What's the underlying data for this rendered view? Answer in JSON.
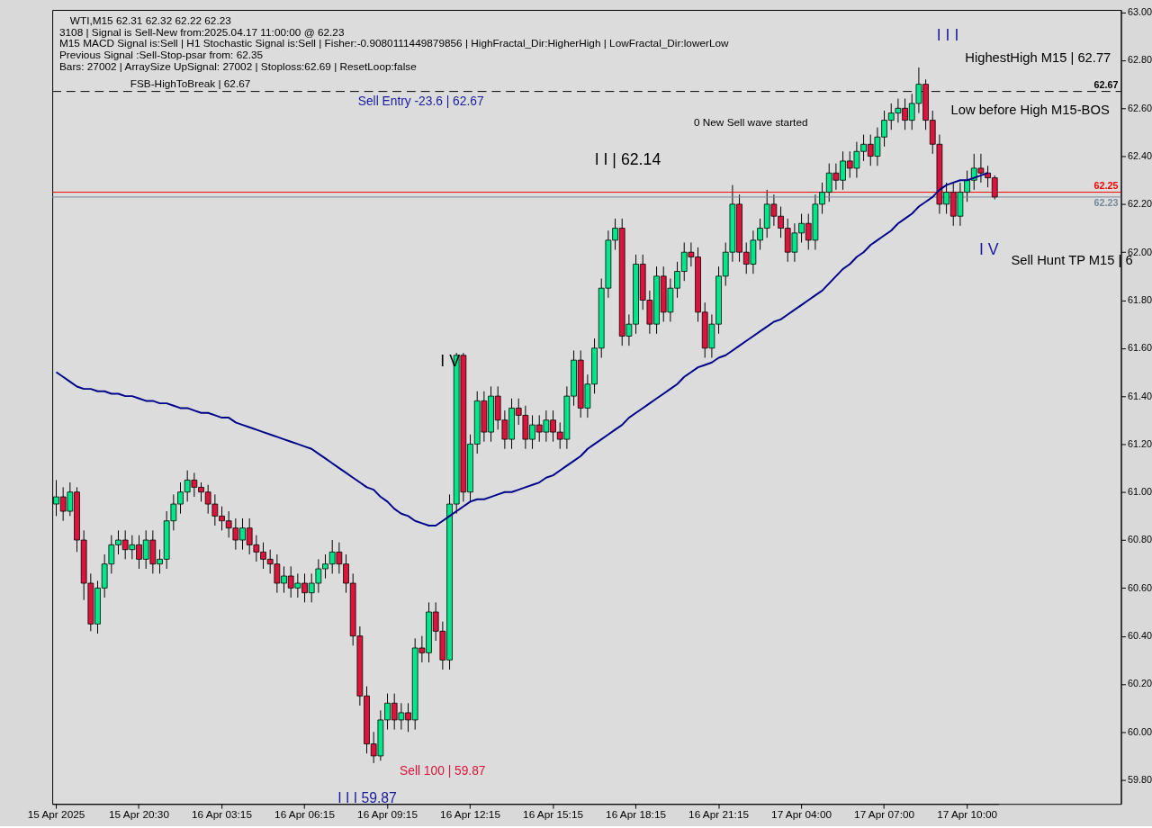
{
  "chart_data": {
    "type": "candlestick",
    "categories": [
      "15 Apr 2025",
      null,
      null,
      null,
      null,
      null,
      null,
      null,
      null,
      null,
      null,
      null,
      "15 Apr 20:30",
      null,
      null,
      null,
      null,
      null,
      null,
      null,
      null,
      null,
      null,
      null,
      "16 Apr 03:15",
      null,
      null,
      null,
      null,
      null,
      null,
      null,
      null,
      null,
      null,
      null,
      "16 Apr 06:15",
      null,
      null,
      null,
      null,
      null,
      null,
      null,
      null,
      null,
      null,
      null,
      "16 Apr 09:15",
      null,
      null,
      null,
      null,
      null,
      null,
      null,
      null,
      null,
      null,
      null,
      "16 Apr 12:15",
      null,
      null,
      null,
      null,
      null,
      null,
      null,
      null,
      null,
      null,
      null,
      "16 Apr 15:15",
      null,
      null,
      null,
      null,
      null,
      null,
      null,
      null,
      null,
      null,
      null,
      "16 Apr 18:15",
      null,
      null,
      null,
      null,
      null,
      null,
      null,
      null,
      null,
      null,
      null,
      "16 Apr 21:15",
      null,
      null,
      null,
      null,
      null,
      null,
      null,
      null,
      null,
      null,
      null,
      "17 Apr 04:00",
      null,
      null,
      null,
      null,
      null,
      null,
      null,
      null,
      null,
      null,
      null,
      "17 Apr 07:00",
      null,
      null,
      null,
      null,
      null,
      null,
      null,
      null,
      null,
      null,
      null,
      "17 Apr 10:00",
      null,
      null,
      null,
      null
    ],
    "ohlc": [
      [
        60.95,
        61.05,
        60.9,
        60.98
      ],
      [
        60.98,
        61.02,
        60.88,
        60.92
      ],
      [
        60.92,
        61.04,
        60.9,
        61.0
      ],
      [
        61.0,
        61.02,
        60.75,
        60.8
      ],
      [
        60.8,
        60.84,
        60.55,
        60.62
      ],
      [
        60.62,
        60.66,
        60.42,
        60.45
      ],
      [
        60.45,
        60.63,
        60.41,
        60.6
      ],
      [
        60.6,
        60.74,
        60.56,
        60.7
      ],
      [
        60.7,
        60.82,
        60.66,
        60.78
      ],
      [
        60.78,
        60.84,
        60.74,
        60.8
      ],
      [
        60.8,
        60.84,
        60.72,
        60.76
      ],
      [
        60.76,
        60.82,
        60.72,
        60.78
      ],
      [
        60.78,
        60.82,
        60.68,
        60.72
      ],
      [
        60.72,
        60.84,
        60.68,
        60.8
      ],
      [
        60.8,
        60.84,
        60.66,
        60.7
      ],
      [
        60.7,
        60.76,
        60.66,
        60.72
      ],
      [
        60.72,
        60.92,
        60.68,
        60.88
      ],
      [
        60.88,
        60.99,
        60.84,
        60.95
      ],
      [
        60.95,
        61.04,
        60.91,
        61.0
      ],
      [
        61.0,
        61.09,
        60.96,
        61.05
      ],
      [
        61.05,
        61.08,
        60.98,
        61.02
      ],
      [
        61.02,
        61.04,
        60.96,
        61.0
      ],
      [
        61.0,
        61.03,
        60.91,
        60.95
      ],
      [
        60.95,
        60.99,
        60.86,
        60.9
      ],
      [
        60.9,
        60.94,
        60.84,
        60.88
      ],
      [
        60.88,
        60.92,
        60.81,
        60.85
      ],
      [
        60.85,
        60.89,
        60.76,
        60.8
      ],
      [
        60.8,
        60.89,
        60.76,
        60.85
      ],
      [
        60.85,
        60.89,
        60.74,
        60.78
      ],
      [
        60.78,
        60.82,
        60.71,
        60.75
      ],
      [
        60.75,
        60.79,
        60.68,
        60.72
      ],
      [
        60.72,
        60.76,
        60.66,
        60.7
      ],
      [
        60.7,
        60.74,
        60.58,
        60.62
      ],
      [
        60.62,
        60.69,
        60.58,
        60.65
      ],
      [
        60.65,
        60.69,
        60.56,
        60.6
      ],
      [
        60.6,
        60.66,
        60.56,
        60.62
      ],
      [
        60.62,
        60.66,
        60.54,
        60.58
      ],
      [
        60.58,
        60.66,
        60.54,
        60.62
      ],
      [
        60.62,
        60.72,
        60.58,
        60.68
      ],
      [
        60.68,
        60.74,
        60.64,
        60.7
      ],
      [
        60.7,
        60.8,
        60.66,
        60.75
      ],
      [
        60.75,
        60.79,
        60.66,
        60.7
      ],
      [
        60.7,
        60.74,
        60.58,
        60.62
      ],
      [
        60.62,
        60.66,
        60.36,
        60.4
      ],
      [
        60.4,
        60.44,
        60.11,
        60.15
      ],
      [
        60.15,
        60.19,
        59.91,
        59.95
      ],
      [
        59.95,
        60.0,
        59.87,
        59.9
      ],
      [
        59.9,
        60.09,
        59.88,
        60.05
      ],
      [
        60.05,
        60.16,
        60.01,
        60.12
      ],
      [
        60.12,
        60.16,
        60.01,
        60.05
      ],
      [
        60.05,
        60.12,
        60.01,
        60.08
      ],
      [
        60.08,
        60.12,
        60.0,
        60.05
      ],
      [
        60.05,
        60.39,
        60.01,
        60.35
      ],
      [
        60.35,
        60.4,
        60.29,
        60.33
      ],
      [
        60.33,
        60.54,
        60.29,
        60.5
      ],
      [
        60.5,
        60.54,
        60.38,
        60.42
      ],
      [
        60.42,
        60.46,
        60.26,
        60.3
      ],
      [
        60.3,
        60.99,
        60.26,
        60.95
      ],
      [
        60.95,
        61.58,
        60.91,
        61.57
      ],
      [
        61.57,
        61.58,
        60.96,
        61.0
      ],
      [
        61.0,
        61.24,
        60.96,
        61.2
      ],
      [
        61.2,
        61.42,
        61.16,
        61.38
      ],
      [
        61.38,
        61.42,
        61.21,
        61.25
      ],
      [
        61.25,
        61.44,
        61.21,
        61.4
      ],
      [
        61.4,
        61.44,
        61.26,
        61.3
      ],
      [
        61.3,
        61.34,
        61.18,
        61.22
      ],
      [
        61.22,
        61.39,
        61.18,
        61.35
      ],
      [
        61.35,
        61.39,
        61.28,
        61.32
      ],
      [
        61.32,
        61.36,
        61.18,
        61.22
      ],
      [
        61.22,
        61.32,
        61.18,
        61.28
      ],
      [
        61.28,
        61.32,
        61.21,
        61.25
      ],
      [
        61.25,
        61.34,
        61.21,
        61.3
      ],
      [
        61.3,
        61.34,
        61.21,
        61.25
      ],
      [
        61.25,
        61.29,
        61.18,
        61.22
      ],
      [
        61.22,
        61.44,
        61.18,
        61.4
      ],
      [
        61.4,
        61.59,
        61.36,
        61.55
      ],
      [
        61.55,
        61.59,
        61.31,
        61.35
      ],
      [
        61.35,
        61.49,
        61.31,
        61.45
      ],
      [
        61.45,
        61.64,
        61.41,
        61.6
      ],
      [
        61.6,
        61.89,
        61.56,
        61.85
      ],
      [
        61.85,
        62.09,
        61.81,
        62.05
      ],
      [
        62.05,
        62.14,
        62.01,
        62.1
      ],
      [
        62.1,
        62.14,
        61.61,
        61.65
      ],
      [
        61.65,
        61.74,
        61.61,
        61.7
      ],
      [
        61.7,
        61.99,
        61.66,
        61.95
      ],
      [
        61.95,
        61.99,
        61.76,
        61.8
      ],
      [
        61.8,
        61.84,
        61.66,
        61.7
      ],
      [
        61.7,
        61.94,
        61.66,
        61.9
      ],
      [
        61.9,
        61.94,
        61.71,
        61.75
      ],
      [
        61.75,
        61.89,
        61.71,
        61.85
      ],
      [
        61.85,
        61.96,
        61.81,
        61.92
      ],
      [
        61.92,
        62.04,
        61.88,
        62.0
      ],
      [
        62.0,
        62.04,
        61.94,
        61.98
      ],
      [
        61.98,
        62.02,
        61.71,
        61.75
      ],
      [
        61.75,
        61.79,
        61.56,
        61.6
      ],
      [
        61.6,
        61.74,
        61.56,
        61.7
      ],
      [
        61.7,
        61.94,
        61.66,
        61.9
      ],
      [
        61.9,
        62.04,
        61.86,
        62.0
      ],
      [
        62.0,
        62.28,
        61.96,
        62.2
      ],
      [
        62.2,
        62.24,
        61.96,
        62.0
      ],
      [
        62.0,
        62.04,
        61.91,
        61.95
      ],
      [
        61.95,
        62.09,
        61.91,
        62.05
      ],
      [
        62.05,
        62.14,
        62.01,
        62.1
      ],
      [
        62.1,
        62.26,
        62.06,
        62.2
      ],
      [
        62.2,
        62.24,
        62.11,
        62.15
      ],
      [
        62.15,
        62.19,
        62.06,
        62.1
      ],
      [
        62.1,
        62.14,
        61.96,
        62.0
      ],
      [
        62.0,
        62.12,
        61.96,
        62.08
      ],
      [
        62.08,
        62.16,
        62.04,
        62.12
      ],
      [
        62.12,
        62.16,
        62.01,
        62.05
      ],
      [
        62.05,
        62.24,
        62.01,
        62.2
      ],
      [
        62.2,
        62.29,
        62.16,
        62.25
      ],
      [
        62.25,
        62.37,
        62.21,
        62.33
      ],
      [
        62.33,
        62.37,
        62.26,
        62.3
      ],
      [
        62.3,
        62.42,
        62.26,
        62.38
      ],
      [
        62.38,
        62.42,
        62.31,
        62.35
      ],
      [
        62.35,
        62.46,
        62.31,
        62.42
      ],
      [
        62.42,
        62.49,
        62.38,
        62.45
      ],
      [
        62.45,
        62.49,
        62.36,
        62.4
      ],
      [
        62.4,
        62.52,
        62.36,
        62.48
      ],
      [
        62.48,
        62.59,
        62.44,
        62.55
      ],
      [
        62.55,
        62.62,
        62.51,
        62.58
      ],
      [
        62.58,
        62.64,
        62.54,
        62.6
      ],
      [
        62.6,
        62.64,
        62.51,
        62.55
      ],
      [
        62.55,
        62.66,
        62.51,
        62.62
      ],
      [
        62.62,
        62.77,
        62.58,
        62.7
      ],
      [
        62.7,
        62.72,
        62.51,
        62.55
      ],
      [
        62.55,
        62.59,
        62.41,
        62.45
      ],
      [
        62.45,
        62.49,
        62.16,
        62.2
      ],
      [
        62.2,
        62.29,
        62.16,
        62.25
      ],
      [
        62.25,
        62.29,
        62.11,
        62.15
      ],
      [
        62.15,
        62.29,
        62.11,
        62.25
      ],
      [
        62.25,
        62.34,
        62.21,
        62.3
      ],
      [
        62.3,
        62.41,
        62.26,
        62.35
      ],
      [
        62.35,
        62.41,
        62.29,
        62.33
      ],
      [
        62.33,
        62.36,
        62.27,
        62.31
      ],
      [
        62.31,
        62.32,
        62.22,
        62.23
      ]
    ],
    "colors": [
      "#00e68a",
      "#dc143c",
      "#00e68a",
      "#dc143c",
      "#dc143c",
      "#dc143c",
      "#00e68a",
      "#00e68a",
      "#00e68a",
      "#00e68a",
      "#dc143c",
      "#00e68a",
      "#dc143c",
      "#00e68a",
      "#dc143c",
      "#00e68a",
      "#00e68a",
      "#00e68a",
      "#00e68a",
      "#00e68a",
      "#dc143c",
      "#dc143c",
      "#dc143c",
      "#dc143c",
      "#dc143c",
      "#dc143c",
      "#dc143c",
      "#00e68a",
      "#dc143c",
      "#dc143c",
      "#dc143c",
      "#dc143c",
      "#dc143c",
      "#00e68a",
      "#dc143c",
      "#00e68a",
      "#dc143c",
      "#00e68a",
      "#00e68a",
      "#00e68a",
      "#00e68a",
      "#dc143c",
      "#dc143c",
      "#dc143c",
      "#dc143c",
      "#dc143c",
      "#dc143c",
      "#00e68a",
      "#00e68a",
      "#dc143c",
      "#00e68a",
      "#dc143c",
      "#00e68a",
      "#dc143c",
      "#00e68a",
      "#dc143c",
      "#dc143c",
      "#00e68a",
      "#00e68a",
      "#dc143c",
      "#00e68a",
      "#00e68a",
      "#dc143c",
      "#00e68a",
      "#dc143c",
      "#dc143c",
      "#00e68a",
      "#dc143c",
      "#dc143c",
      "#00e68a",
      "#dc143c",
      "#00e68a",
      "#dc143c",
      "#dc143c",
      "#00e68a",
      "#00e68a",
      "#dc143c",
      "#00e68a",
      "#00e68a",
      "#00e68a",
      "#00e68a",
      "#00e68a",
      "#dc143c",
      "#00e68a",
      "#00e68a",
      "#dc143c",
      "#dc143c",
      "#00e68a",
      "#dc143c",
      "#00e68a",
      "#00e68a",
      "#00e68a",
      "#dc143c",
      "#dc143c",
      "#dc143c",
      "#00e68a",
      "#00e68a",
      "#00e68a",
      "#00e68a",
      "#dc143c",
      "#dc143c",
      "#00e68a",
      "#00e68a",
      "#00e68a",
      "#dc143c",
      "#dc143c",
      "#dc143c",
      "#00e68a",
      "#00e68a",
      "#dc143c",
      "#00e68a",
      "#00e68a",
      "#00e68a",
      "#dc143c",
      "#00e68a",
      "#dc143c",
      "#00e68a",
      "#00e68a",
      "#dc143c",
      "#00e68a",
      "#00e68a",
      "#00e68a",
      "#00e68a",
      "#dc143c",
      "#00e68a",
      "#00e68a",
      "#dc143c",
      "#dc143c",
      "#dc143c",
      "#00e68a",
      "#dc143c",
      "#00e68a",
      "#00e68a",
      "#00e68a",
      "#dc143c",
      "#dc143c",
      "#dc143c"
    ],
    "series": [
      {
        "type": "line",
        "color": "#00008b",
        "values": [
          61.5,
          61.48,
          61.46,
          61.44,
          61.43,
          61.43,
          61.42,
          61.42,
          61.41,
          61.41,
          61.4,
          61.4,
          61.39,
          61.38,
          61.38,
          61.37,
          61.37,
          61.36,
          61.35,
          61.35,
          61.34,
          61.33,
          61.33,
          61.32,
          61.31,
          61.31,
          61.29,
          61.28,
          61.27,
          61.26,
          61.25,
          61.24,
          61.23,
          61.22,
          61.21,
          61.2,
          61.19,
          61.18,
          61.16,
          61.14,
          61.12,
          61.1,
          61.08,
          61.06,
          61.04,
          61.02,
          61.01,
          60.98,
          60.96,
          60.93,
          60.91,
          60.9,
          60.88,
          60.87,
          60.86,
          60.86,
          60.88,
          60.9,
          60.92,
          60.94,
          60.96,
          60.97,
          60.97,
          60.98,
          60.99,
          61.0,
          61.0,
          61.01,
          61.02,
          61.03,
          61.04,
          61.06,
          61.07,
          61.09,
          61.11,
          61.13,
          61.15,
          61.18,
          61.2,
          61.22,
          61.24,
          61.26,
          61.28,
          61.31,
          61.33,
          61.35,
          61.37,
          61.39,
          61.41,
          61.43,
          61.45,
          61.48,
          61.5,
          61.52,
          61.53,
          61.54,
          61.56,
          61.57,
          61.59,
          61.61,
          61.63,
          61.65,
          61.67,
          61.69,
          61.71,
          61.72,
          61.74,
          61.76,
          61.78,
          61.8,
          61.82,
          61.84,
          61.87,
          61.9,
          61.93,
          61.95,
          61.98,
          62.0,
          62.03,
          62.05,
          62.07,
          62.09,
          62.12,
          62.14,
          62.16,
          62.19,
          62.21,
          62.23,
          62.26,
          62.28,
          62.29,
          62.3,
          62.3,
          62.31,
          62.32,
          62.33,
          null
        ]
      }
    ],
    "ylim": [
      59.7,
      63.01
    ],
    "yticks": [
      {
        "value": 59.8,
        "label": "59.80"
      },
      {
        "value": 60.0,
        "label": "60.00"
      },
      {
        "value": 60.2,
        "label": "60.20"
      },
      {
        "value": 60.4,
        "label": "60.40"
      },
      {
        "value": 60.6,
        "label": "60.60"
      },
      {
        "value": 60.8,
        "label": "60.80"
      },
      {
        "value": 61.0,
        "label": "61.00"
      },
      {
        "value": 61.2,
        "label": "61.20"
      },
      {
        "value": 61.4,
        "label": "61.40"
      },
      {
        "value": 61.6,
        "label": "61.60"
      },
      {
        "value": 61.8,
        "label": "61.80"
      },
      {
        "value": 62.0,
        "label": "62.00"
      },
      {
        "value": 62.2,
        "label": "62.20"
      },
      {
        "value": 62.4,
        "label": "62.40"
      },
      {
        "value": 62.6,
        "label": "62.60"
      },
      {
        "value": 62.8,
        "label": "62.80"
      },
      {
        "value": 63.0,
        "label": "63.00"
      }
    ],
    "ref_lines": [
      {
        "axis": "y",
        "value": 62.67,
        "label": "62.67",
        "color": "#000000",
        "line_style": "dashed"
      },
      {
        "axis": "y",
        "value": 62.25,
        "label": "62.25",
        "color": "#ff0000",
        "line_style": "solid"
      },
      {
        "axis": "y",
        "value": 62.23,
        "label": "62.23",
        "color": "#778899",
        "line_style": "solid"
      }
    ],
    "annotations": [
      "WTI,M15  62.31 62.32 62.22 62.23",
      "3108 | Signal is Sell-New from:2025.04.17 11:00:00 @ 62.23",
      "M15 MACD Signal is:Sell | H1 Stochastic Signal is:Sell | Fisher:-0.9080111449879856 | HighFractal_Dir:HigherHigh | LowFractal_Dir:lowerLow",
      "Previous Signal :Sell-Stop-psar from: 62.35",
      "Bars: 27002 | ArraySize UpSignal: 27002 | Stoploss:62.69 | ResetLoop:false",
      {
        "text": "FSB-HighToBreak | 62.67",
        "y": 62.67
      },
      {
        "text": "Sell Entry -23.6 | 62.67",
        "y": 62.67
      },
      {
        "text": "0 New Sell wave started"
      },
      "I I | 62.14",
      {
        "text": "I V"
      },
      {
        "text": "I I I"
      },
      "HighestHigh   M15 | 62.77",
      {
        "text": "Low before High   M15-BOS"
      },
      {
        "text": "I V"
      },
      {
        "text": "Sell Hunt TP M15 | 6"
      },
      "Sell 100 | 59.87",
      "I I I 59.87"
    ],
    "grid": false
  }
}
